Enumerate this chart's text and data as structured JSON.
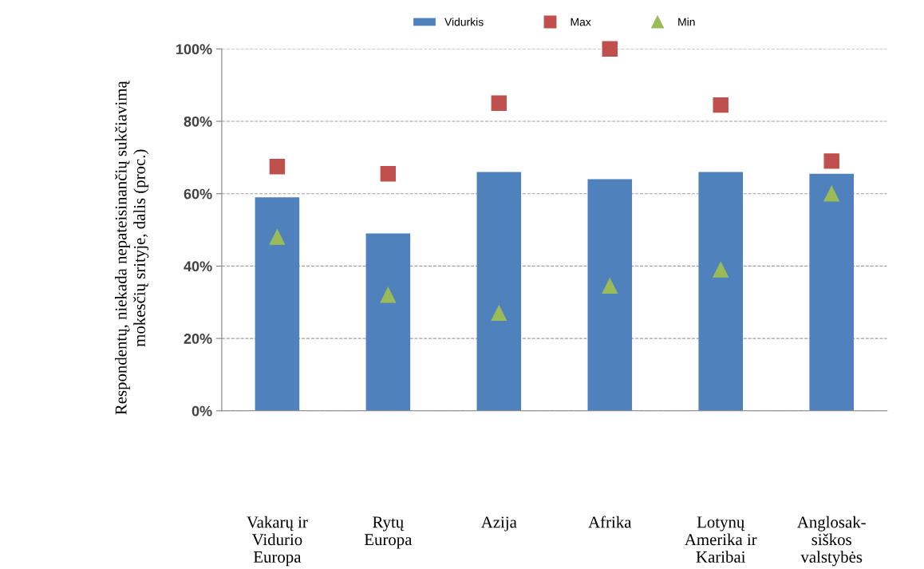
{
  "chart_data": {
    "type": "bar",
    "categories": [
      "Vakarų ir\nVidurio\nEuropa",
      "Rytų\nEuropa",
      "Azija",
      "Afrika",
      "Lotynų\nAmerika ir\nKaribai",
      "Anglosak-\nsiškos\nvalstybės"
    ],
    "ylabel": "Respondentų, niekada nepateisinančių sukčiavimą\nmokesčių srityje, dalis (proc.)",
    "series": [
      {
        "name": "Vidurkis",
        "color": "#4f81bd",
        "values": [
          59,
          49,
          66,
          64,
          66,
          65.5
        ]
      },
      {
        "name": "Max",
        "type": "scatter",
        "marker": "square",
        "color": "#c0504d",
        "values": [
          67.5,
          65.5,
          85,
          100,
          84.5,
          69
        ]
      },
      {
        "name": "Min",
        "type": "scatter",
        "marker": "triangle",
        "color": "#9bbb59",
        "values": [
          48,
          32,
          27,
          34.5,
          39,
          60
        ]
      }
    ],
    "ylim": [
      0,
      100
    ],
    "yticks": [
      {
        "value": 0,
        "label": "0%"
      },
      {
        "value": 20,
        "label": "20%"
      },
      {
        "value": 40,
        "label": "40%"
      },
      {
        "value": 60,
        "label": "60%"
      },
      {
        "value": 80,
        "label": "80%"
      },
      {
        "value": 100,
        "label": "100%"
      }
    ],
    "grid": "y",
    "legend": "top"
  }
}
